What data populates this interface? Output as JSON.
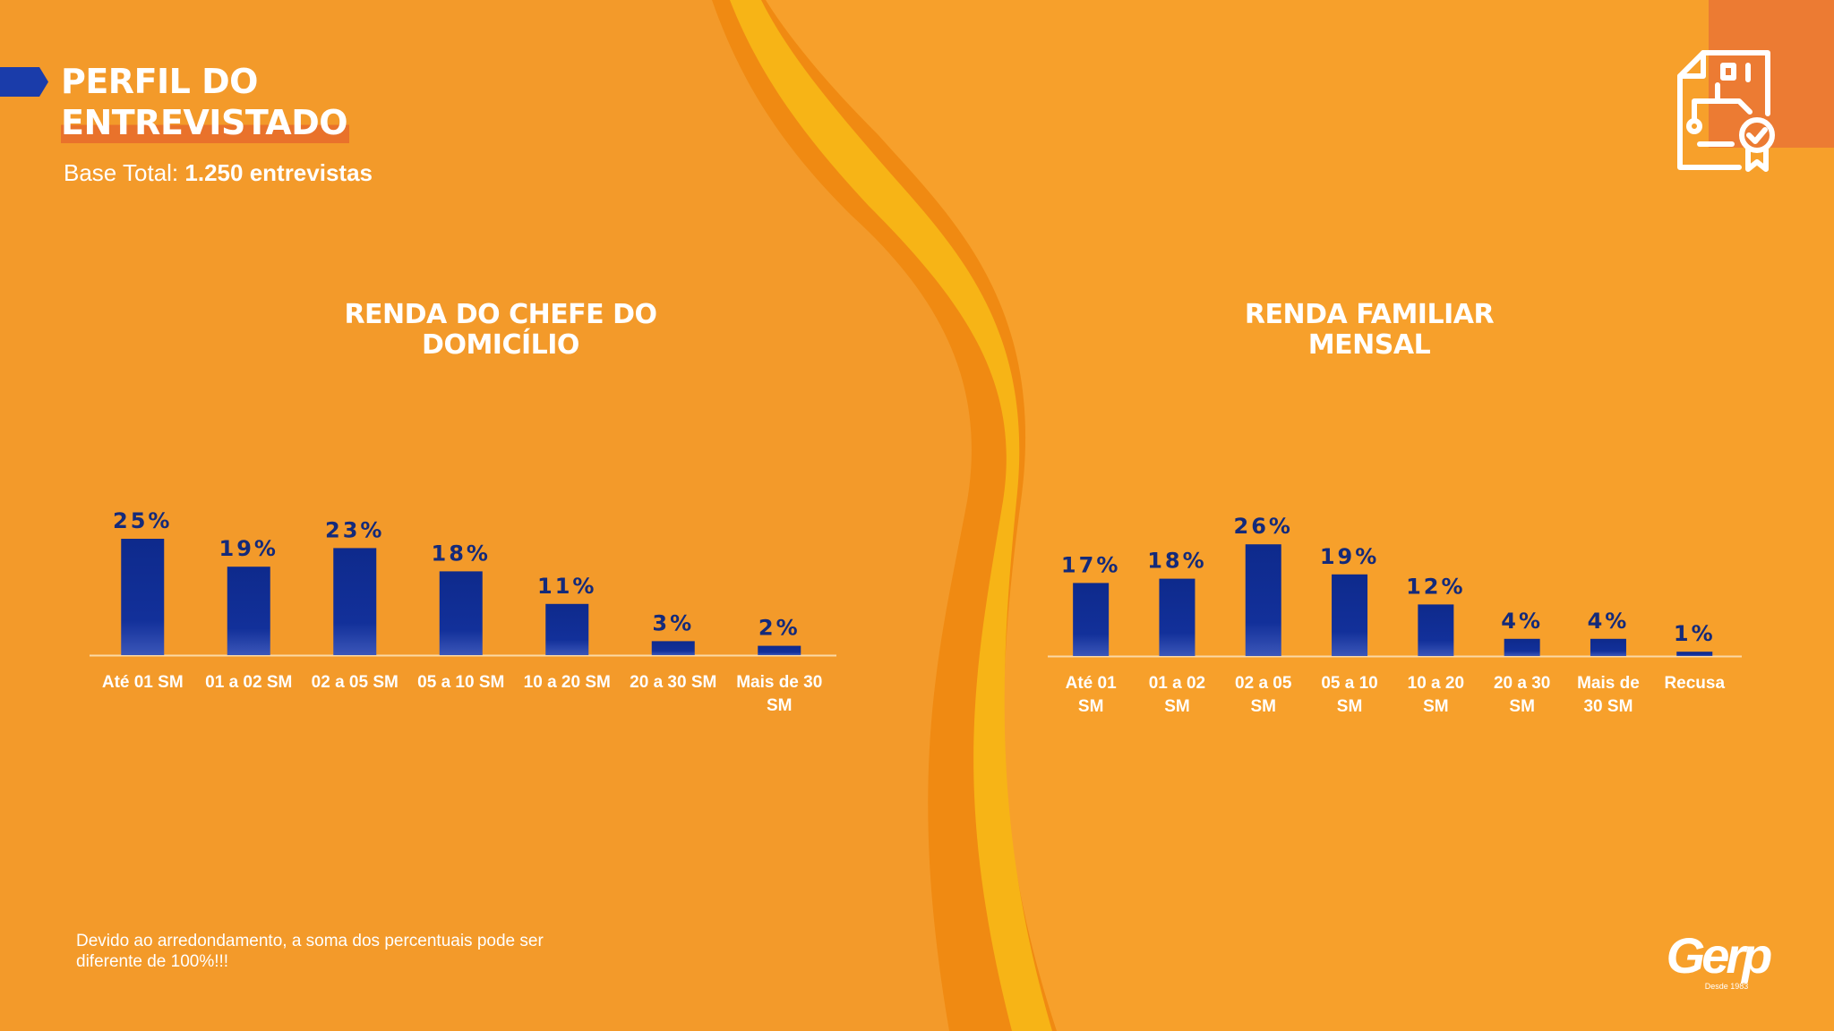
{
  "header": {
    "title_line1": "PERFIL DO",
    "title_line2": "ENTREVISTADO",
    "base_label": "Base Total:",
    "base_value": "1.250 entrevistas"
  },
  "icons": [
    "document-check-icon"
  ],
  "colors": {
    "background": "#F39A2A",
    "bar": "#0F2C8E",
    "accent_blue": "#1237A6"
  },
  "footnote": "Devido ao arredondamento, a soma dos percentuais pode ser diferente de 100%!!!",
  "logo": {
    "brand": "Gerp",
    "tagline": "Desde 1983"
  },
  "chart_data": [
    {
      "type": "bar",
      "title": "RENDA DO CHEFE DO DOMICÍLIO",
      "categories": [
        "Até 01 SM",
        "01 a 02 SM",
        "02 a 05 SM",
        "05 a 10 SM",
        "10 a 20 SM",
        "20 a 30 SM",
        "Mais de 30 SM"
      ],
      "values": [
        25,
        19,
        23,
        18,
        11,
        3,
        2
      ],
      "labels": [
        "25%",
        "19%",
        "23%",
        "18%",
        "11%",
        "3%",
        "2%"
      ],
      "unit": "%",
      "ylim": [
        0,
        26
      ],
      "grid": false,
      "legend": "none"
    },
    {
      "type": "bar",
      "title": "RENDA FAMILIAR MENSAL",
      "categories": [
        "Até 01 SM",
        "01 a 02 SM",
        "02 a 05 SM",
        "05 a 10 SM",
        "10 a 20 SM",
        "20 a 30 SM",
        "Mais de 30 SM",
        "Recusa"
      ],
      "values": [
        17,
        18,
        26,
        19,
        12,
        4,
        4,
        1
      ],
      "labels": [
        "17%",
        "18%",
        "26%",
        "19%",
        "12%",
        "4%",
        "4%",
        "1%"
      ],
      "unit": "%",
      "ylim": [
        0,
        26
      ],
      "grid": false,
      "legend": "none"
    }
  ]
}
